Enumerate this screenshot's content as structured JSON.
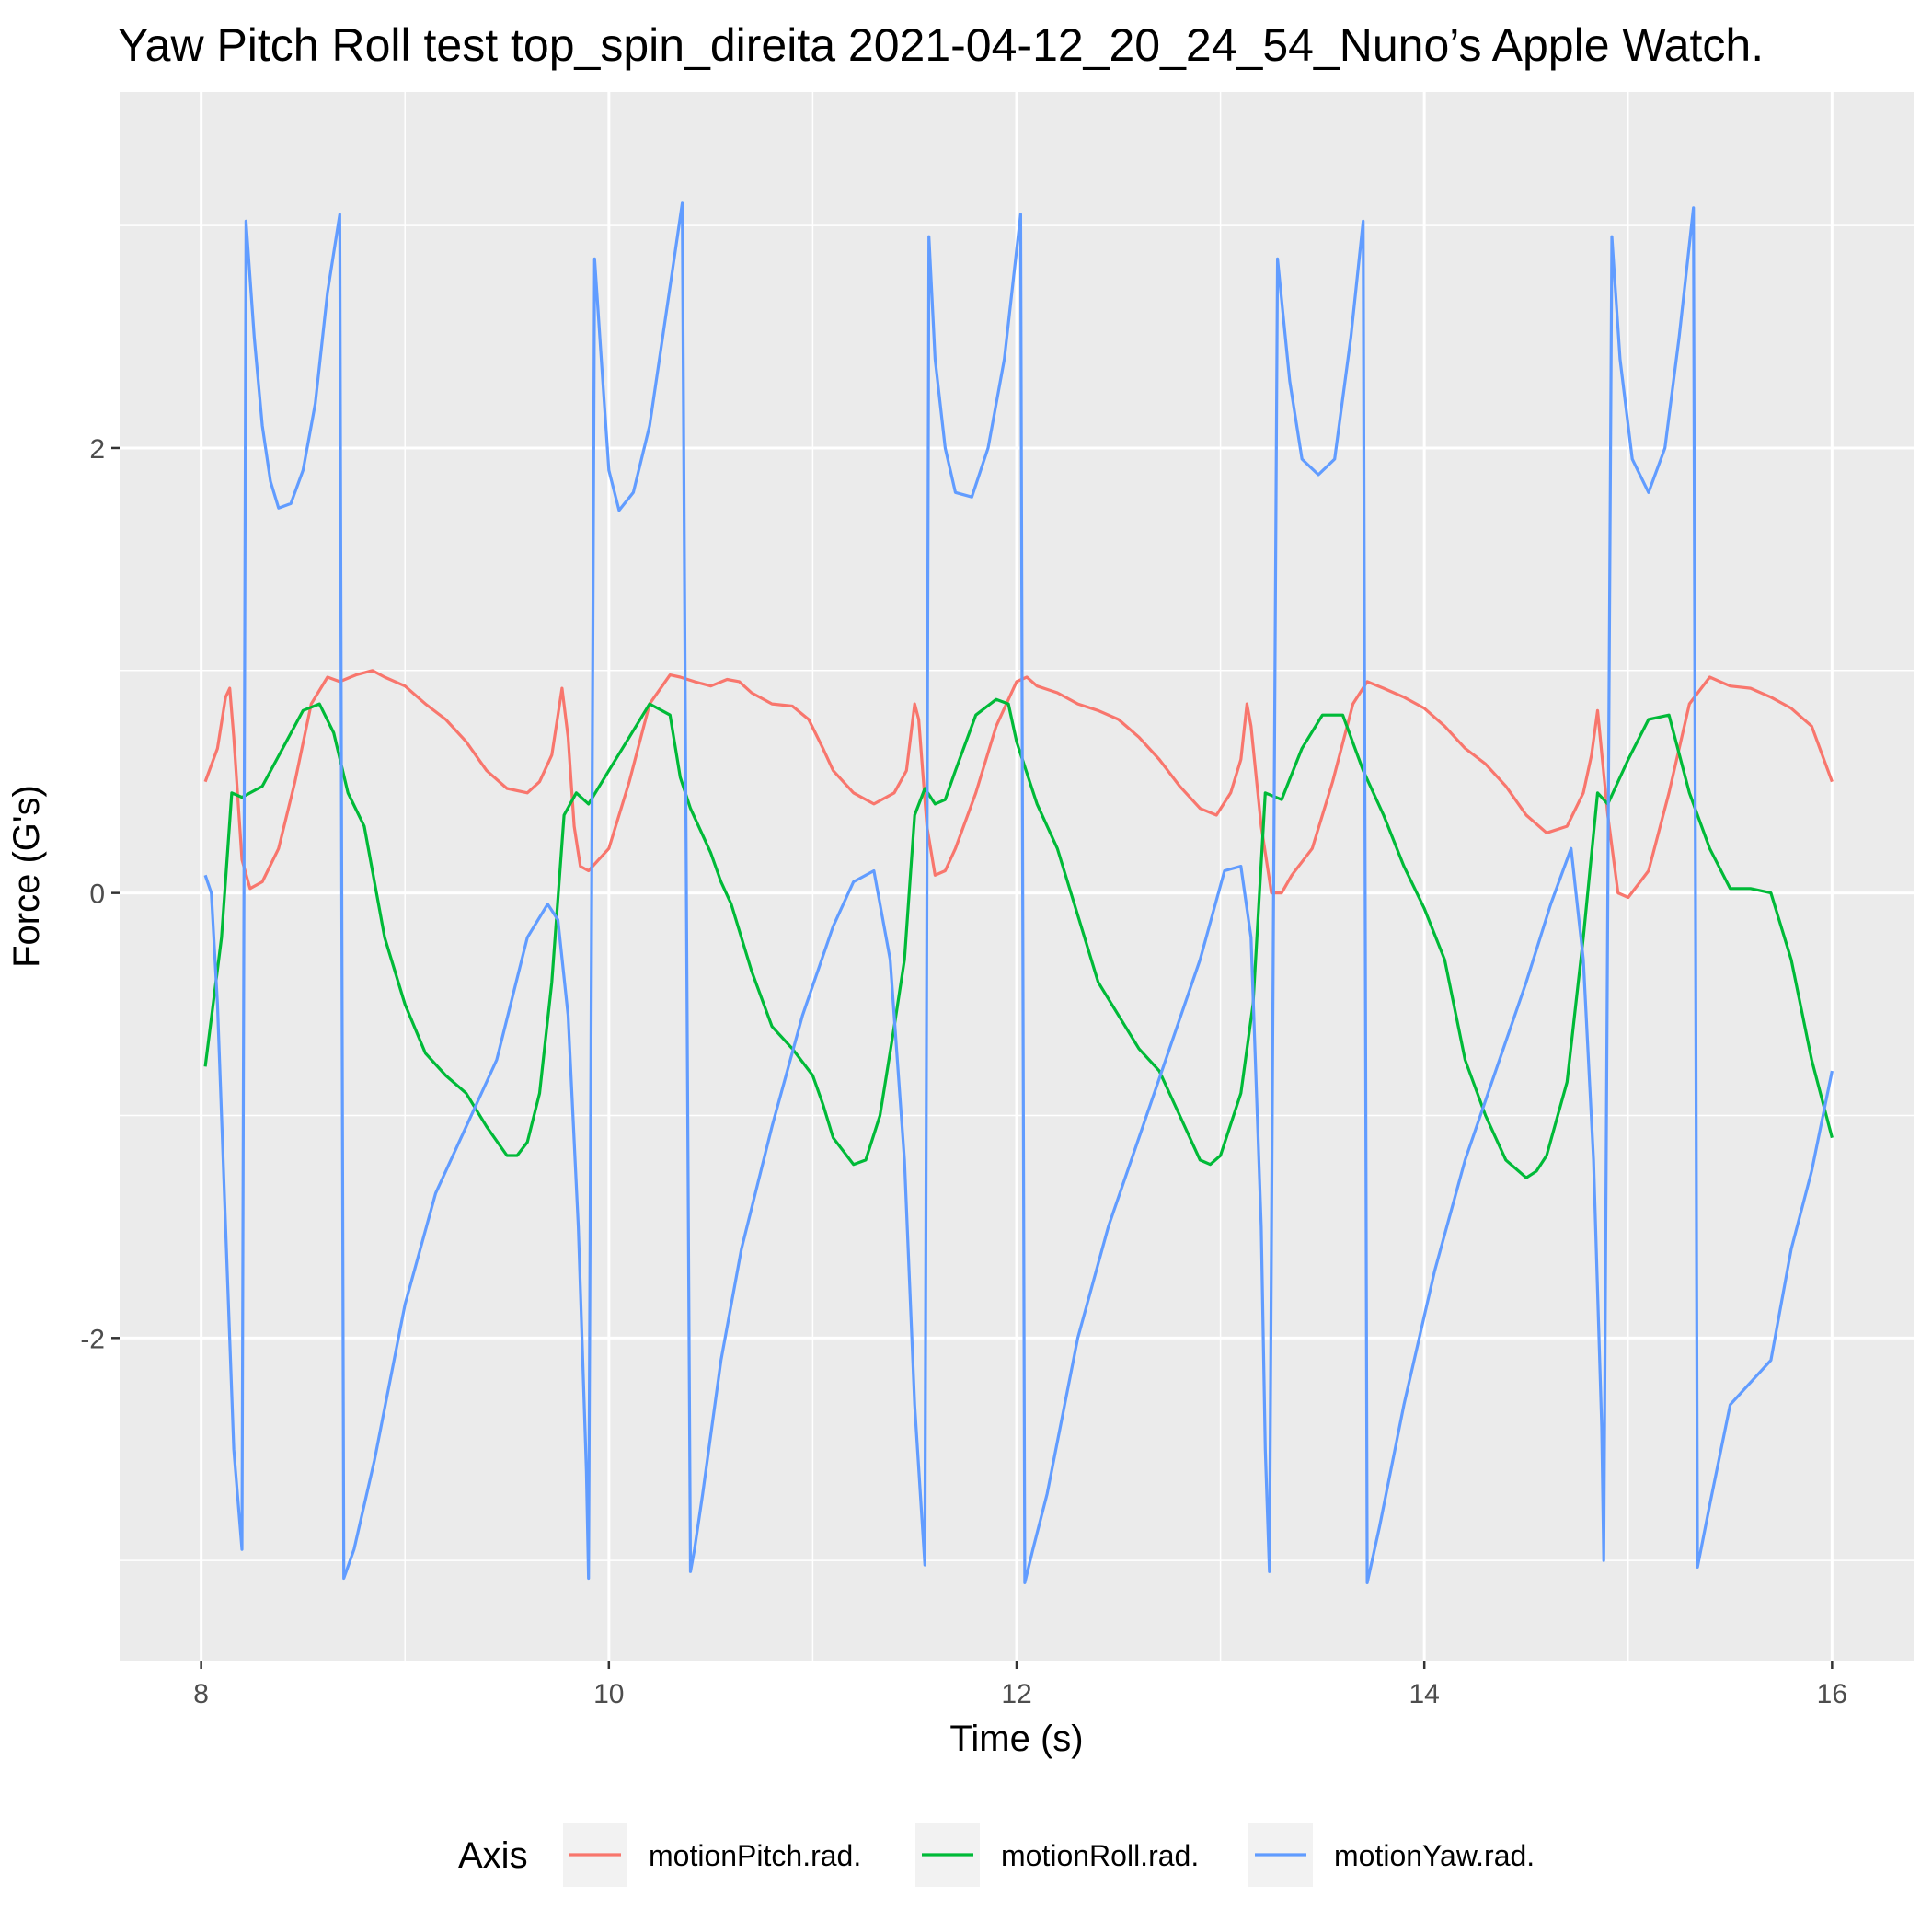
{
  "chart_data": {
    "type": "line",
    "title": "Yaw Pitch Roll test top_spin_direita 2021-04-12_20_24_54_Nuno’s Apple Watch.",
    "xlabel": "Time (s)",
    "ylabel": "Force (G's)",
    "xlim": [
      7.6,
      16.4
    ],
    "ylim": [
      -3.45,
      3.6
    ],
    "xticks": [
      8,
      10,
      12,
      14,
      16
    ],
    "xtick_labels": [
      "8",
      "10",
      "12",
      "14",
      "16"
    ],
    "yticks": [
      -2,
      0,
      2
    ],
    "ytick_labels": [
      "-2",
      "0",
      "2"
    ],
    "grid": true,
    "legend": {
      "title": "Axis",
      "position": "bottom"
    },
    "series": [
      {
        "name": "motionPitch.rad.",
        "color": "#F8766D",
        "x": [
          8.02,
          8.08,
          8.12,
          8.14,
          8.16,
          8.2,
          8.24,
          8.3,
          8.38,
          8.46,
          8.54,
          8.62,
          8.68,
          8.76,
          8.84,
          8.9,
          9.0,
          9.1,
          9.2,
          9.3,
          9.4,
          9.5,
          9.6,
          9.66,
          9.72,
          9.77,
          9.8,
          9.83,
          9.86,
          9.9,
          9.95,
          10.0,
          10.1,
          10.2,
          10.3,
          10.35,
          10.42,
          10.5,
          10.58,
          10.64,
          10.7,
          10.8,
          10.9,
          10.98,
          11.05,
          11.1,
          11.2,
          11.3,
          11.4,
          11.46,
          11.5,
          11.52,
          11.56,
          11.6,
          11.65,
          11.7,
          11.8,
          11.9,
          12.0,
          12.05,
          12.1,
          12.2,
          12.3,
          12.4,
          12.5,
          12.6,
          12.7,
          12.8,
          12.9,
          12.98,
          13.05,
          13.1,
          13.13,
          13.15,
          13.2,
          13.25,
          13.3,
          13.35,
          13.45,
          13.55,
          13.65,
          13.72,
          13.8,
          13.9,
          14.0,
          14.1,
          14.2,
          14.3,
          14.4,
          14.5,
          14.6,
          14.7,
          14.78,
          14.82,
          14.85,
          14.9,
          14.95,
          15.0,
          15.1,
          15.2,
          15.3,
          15.4,
          15.5,
          15.6,
          15.7,
          15.8,
          15.9,
          16.0
        ],
        "y": [
          0.5,
          0.65,
          0.88,
          0.92,
          0.7,
          0.15,
          0.02,
          0.05,
          0.2,
          0.5,
          0.85,
          0.97,
          0.95,
          0.98,
          1.0,
          0.97,
          0.93,
          0.85,
          0.78,
          0.68,
          0.55,
          0.47,
          0.45,
          0.5,
          0.62,
          0.92,
          0.7,
          0.3,
          0.12,
          0.1,
          0.15,
          0.2,
          0.5,
          0.85,
          0.98,
          0.97,
          0.95,
          0.93,
          0.96,
          0.95,
          0.9,
          0.85,
          0.84,
          0.78,
          0.65,
          0.55,
          0.45,
          0.4,
          0.45,
          0.55,
          0.85,
          0.78,
          0.3,
          0.08,
          0.1,
          0.2,
          0.45,
          0.75,
          0.95,
          0.97,
          0.93,
          0.9,
          0.85,
          0.82,
          0.78,
          0.7,
          0.6,
          0.48,
          0.38,
          0.35,
          0.45,
          0.6,
          0.85,
          0.75,
          0.3,
          0.0,
          0.0,
          0.08,
          0.2,
          0.5,
          0.85,
          0.95,
          0.92,
          0.88,
          0.83,
          0.75,
          0.65,
          0.58,
          0.48,
          0.35,
          0.27,
          0.3,
          0.45,
          0.62,
          0.82,
          0.35,
          0.0,
          -0.02,
          0.1,
          0.45,
          0.85,
          0.97,
          0.93,
          0.92,
          0.88,
          0.83,
          0.75,
          0.5
        ]
      },
      {
        "name": "motionRoll.rad.",
        "color": "#00BA38",
        "x": [
          8.02,
          8.1,
          8.15,
          8.2,
          8.3,
          8.4,
          8.5,
          8.58,
          8.65,
          8.72,
          8.8,
          8.9,
          9.0,
          9.1,
          9.2,
          9.3,
          9.4,
          9.5,
          9.55,
          9.6,
          9.66,
          9.72,
          9.78,
          9.84,
          9.9,
          10.0,
          10.1,
          10.2,
          10.3,
          10.35,
          10.4,
          10.5,
          10.55,
          10.6,
          10.7,
          10.8,
          10.9,
          11.0,
          11.05,
          11.1,
          11.2,
          11.26,
          11.33,
          11.4,
          11.45,
          11.5,
          11.55,
          11.6,
          11.65,
          11.7,
          11.8,
          11.9,
          11.96,
          12.0,
          12.1,
          12.2,
          12.3,
          12.4,
          12.5,
          12.6,
          12.7,
          12.8,
          12.9,
          12.95,
          13.0,
          13.1,
          13.16,
          13.22,
          13.3,
          13.4,
          13.5,
          13.6,
          13.7,
          13.8,
          13.9,
          14.0,
          14.1,
          14.2,
          14.3,
          14.4,
          14.5,
          14.55,
          14.6,
          14.7,
          14.78,
          14.85,
          14.9,
          15.0,
          15.1,
          15.2,
          15.3,
          15.4,
          15.5,
          15.6,
          15.7,
          15.8,
          15.9,
          16.0
        ],
        "y": [
          -0.78,
          -0.2,
          0.45,
          0.43,
          0.48,
          0.65,
          0.82,
          0.85,
          0.72,
          0.45,
          0.3,
          -0.2,
          -0.5,
          -0.72,
          -0.82,
          -0.9,
          -1.05,
          -1.18,
          -1.18,
          -1.12,
          -0.9,
          -0.4,
          0.35,
          0.45,
          0.4,
          0.55,
          0.7,
          0.85,
          0.8,
          0.52,
          0.38,
          0.18,
          0.05,
          -0.05,
          -0.35,
          -0.6,
          -0.7,
          -0.82,
          -0.95,
          -1.1,
          -1.22,
          -1.2,
          -1.0,
          -0.6,
          -0.3,
          0.35,
          0.47,
          0.4,
          0.42,
          0.55,
          0.8,
          0.87,
          0.85,
          0.68,
          0.4,
          0.2,
          -0.1,
          -0.4,
          -0.55,
          -0.7,
          -0.8,
          -1.0,
          -1.2,
          -1.22,
          -1.18,
          -0.9,
          -0.5,
          0.45,
          0.42,
          0.65,
          0.8,
          0.8,
          0.55,
          0.35,
          0.12,
          -0.07,
          -0.3,
          -0.75,
          -1.0,
          -1.2,
          -1.28,
          -1.25,
          -1.18,
          -0.85,
          -0.2,
          0.45,
          0.4,
          0.6,
          0.78,
          0.8,
          0.45,
          0.2,
          0.02,
          0.02,
          0.0,
          -0.3,
          -0.75,
          -1.1
        ]
      },
      {
        "name": "motionYaw.rad.",
        "color": "#619CFF",
        "x": [
          8.02,
          8.05,
          8.08,
          8.12,
          8.16,
          8.2,
          8.22,
          8.26,
          8.3,
          8.34,
          8.38,
          8.44,
          8.5,
          8.56,
          8.62,
          8.68,
          8.7,
          8.75,
          8.85,
          9.0,
          9.15,
          9.3,
          9.45,
          9.6,
          9.7,
          9.75,
          9.8,
          9.85,
          9.89,
          9.9,
          9.93,
          9.97,
          10.0,
          10.05,
          10.12,
          10.2,
          10.28,
          10.36,
          10.4,
          10.42,
          10.46,
          10.55,
          10.65,
          10.8,
          10.95,
          11.1,
          11.2,
          11.3,
          11.38,
          11.45,
          11.5,
          11.55,
          11.57,
          11.6,
          11.65,
          11.7,
          11.78,
          11.86,
          11.94,
          12.02,
          12.04,
          12.08,
          12.15,
          12.3,
          12.45,
          12.6,
          12.75,
          12.9,
          13.02,
          13.1,
          13.15,
          13.2,
          13.22,
          13.24,
          13.28,
          13.34,
          13.4,
          13.48,
          13.56,
          13.64,
          13.7,
          13.72,
          13.78,
          13.9,
          14.05,
          14.2,
          14.35,
          14.5,
          14.62,
          14.72,
          14.78,
          14.83,
          14.87,
          14.88,
          14.92,
          14.96,
          15.02,
          15.1,
          15.18,
          15.25,
          15.32,
          15.34,
          15.4,
          15.5,
          15.6,
          15.7,
          15.8,
          15.9,
          16.0
        ],
        "y": [
          0.08,
          0.0,
          -0.5,
          -1.5,
          -2.5,
          -2.95,
          3.02,
          2.5,
          2.1,
          1.85,
          1.73,
          1.75,
          1.9,
          2.2,
          2.7,
          3.05,
          -3.08,
          -2.95,
          -2.55,
          -1.85,
          -1.35,
          -1.05,
          -0.75,
          -0.2,
          -0.05,
          -0.12,
          -0.55,
          -1.5,
          -2.6,
          -3.08,
          2.85,
          2.3,
          1.9,
          1.72,
          1.8,
          2.1,
          2.6,
          3.1,
          -3.05,
          -2.95,
          -2.7,
          -2.1,
          -1.6,
          -1.05,
          -0.55,
          -0.15,
          0.05,
          0.1,
          -0.3,
          -1.2,
          -2.3,
          -3.02,
          2.95,
          2.4,
          2.0,
          1.8,
          1.78,
          2.0,
          2.4,
          3.05,
          -3.1,
          -2.95,
          -2.7,
          -2.0,
          -1.5,
          -1.1,
          -0.7,
          -0.3,
          0.1,
          0.12,
          -0.2,
          -1.5,
          -2.5,
          -3.05,
          2.85,
          2.3,
          1.95,
          1.88,
          1.95,
          2.5,
          3.02,
          -3.1,
          -2.85,
          -2.3,
          -1.7,
          -1.2,
          -0.8,
          -0.4,
          -0.05,
          0.2,
          -0.3,
          -1.2,
          -2.4,
          -3.0,
          2.95,
          2.4,
          1.95,
          1.8,
          2.0,
          2.5,
          3.08,
          -3.03,
          -2.75,
          -2.3,
          -2.2,
          -2.1,
          -1.6,
          -1.25,
          -0.8
        ]
      }
    ]
  }
}
